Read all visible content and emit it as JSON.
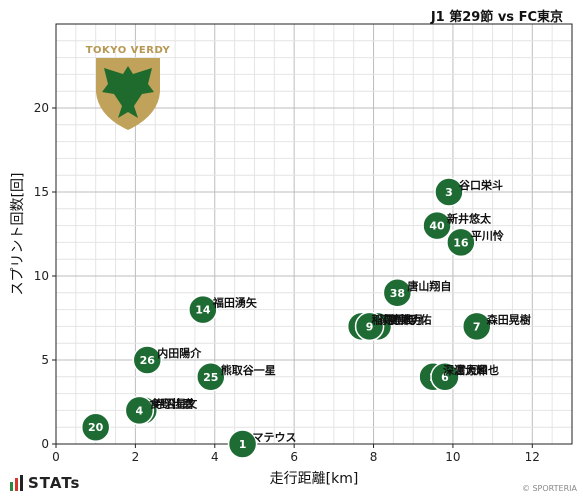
{
  "title": "J1 第29節 vs FC東京",
  "branding": {
    "stats": "STATs",
    "copyright": "© SPORTERIA",
    "club_logo_text": "TOKYO VERDY"
  },
  "colors": {
    "point": "#1e6b34",
    "point_stroke": "#ffffff",
    "grid": "#cccccc",
    "crest_gold": "#c0a25a",
    "crest_green": "#1f6b2d"
  },
  "chart_data": {
    "type": "scatter",
    "xlabel": "走行距離[km]",
    "ylabel": "スプリント回数[回]",
    "xlim": [
      0,
      13
    ],
    "ylim": [
      0,
      25
    ],
    "xticks": [
      0,
      2,
      4,
      6,
      8,
      10,
      12
    ],
    "yticks": [
      0,
      5,
      10,
      15,
      20
    ],
    "grid": true,
    "points": [
      {
        "number": "3",
        "name": "谷口栄斗",
        "x": 9.9,
        "y": 15
      },
      {
        "number": "40",
        "name": "新井悠太",
        "x": 9.6,
        "y": 13
      },
      {
        "number": "16",
        "name": "平川怜",
        "x": 10.2,
        "y": 12
      },
      {
        "number": "38",
        "name": "唐山翔自",
        "x": 8.6,
        "y": 9
      },
      {
        "number": "14",
        "name": "福田湧矢",
        "x": 3.7,
        "y": 8
      },
      {
        "number": "17",
        "name": "稲見哲行",
        "x": 7.7,
        "y": 7
      },
      {
        "number": "8",
        "name": "齋藤功佑",
        "x": 8.1,
        "y": 7
      },
      {
        "number": "9",
        "name": "染野唯月",
        "x": 7.9,
        "y": 7
      },
      {
        "number": "7",
        "name": "森田晃樹",
        "x": 10.6,
        "y": 7
      },
      {
        "number": "26",
        "name": "内田陽介",
        "x": 2.3,
        "y": 5
      },
      {
        "number": "25",
        "name": "熊取谷一星",
        "x": 3.9,
        "y": 4
      },
      {
        "number": "2",
        "name": "深澤大輝",
        "x": 9.5,
        "y": 4
      },
      {
        "number": "6",
        "name": "宮原和也",
        "x": 9.8,
        "y": 4
      },
      {
        "number": "5",
        "name": "寺沼星文",
        "x": 2.2,
        "y": 2
      },
      {
        "number": "4",
        "name": "食野壮磨",
        "x": 2.1,
        "y": 2
      },
      {
        "number": "20",
        "name": "",
        "x": 1.0,
        "y": 1
      },
      {
        "number": "1",
        "name": "マテウス",
        "x": 4.7,
        "y": 0
      }
    ]
  }
}
